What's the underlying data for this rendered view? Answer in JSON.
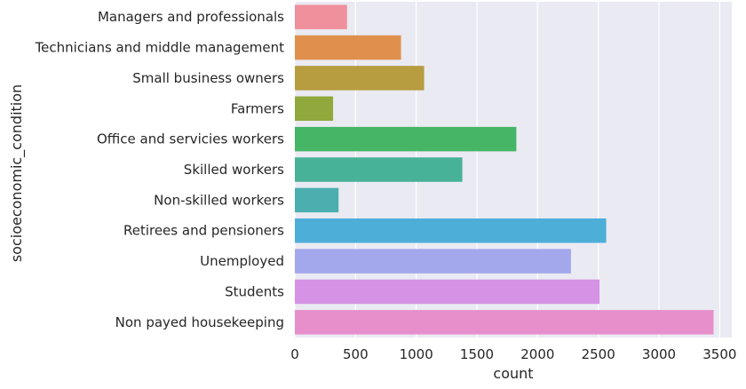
{
  "chart_data": {
    "type": "bar",
    "orientation": "horizontal",
    "xlabel": "count",
    "ylabel": "socioeconomic_condition",
    "xlim": [
      0,
      3600
    ],
    "xticks": [
      0,
      500,
      1000,
      1500,
      2000,
      2500,
      3000,
      3500
    ],
    "grid": true,
    "categories": [
      "Managers and professionals",
      "Technicians and middle management",
      "Small business owners",
      "Farmers",
      "Office and servicies workers",
      "Skilled workers",
      "Non-skilled workers",
      "Retirees and pensioners",
      "Unemployed",
      "Students",
      "Non payed housekeeping"
    ],
    "values": [
      430,
      875,
      1065,
      315,
      1825,
      1380,
      360,
      2565,
      2275,
      2510,
      3450
    ],
    "colors": [
      "#f0909c",
      "#e0904c",
      "#b79c40",
      "#90a83c",
      "#45b566",
      "#48b296",
      "#4aafae",
      "#4daed8",
      "#a3a7ec",
      "#d692e5",
      "#e68fcb"
    ]
  }
}
